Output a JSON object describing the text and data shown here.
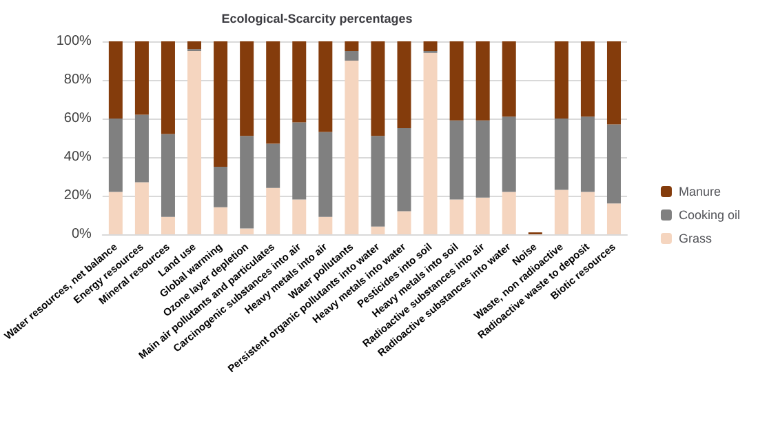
{
  "chart_data": {
    "type": "bar",
    "title": "Ecological-Scarcity percentages",
    "stacked": true,
    "categories": [
      "Water resources, net balance",
      "Energy resources",
      "Mineral resources",
      "Land use",
      "Global warming",
      "Ozone layer depletion",
      "Main air pollutants and particulates",
      "Carcinogenic substances into air",
      "Heavy metals into air",
      "Water pollutants",
      "Persistent organic pollutants into water",
      "Heavy metals into water",
      "Pesticides into soil",
      "Heavy metals into soil",
      "Radioactive substances into air",
      "Radioactive substances into water",
      "Noise",
      "Waste, non radioactive",
      "Radioactive waste to deposit",
      "Biotic resources"
    ],
    "series": [
      {
        "name": "Grass",
        "color": "#f5d5bf",
        "values": [
          22,
          27,
          9,
          95,
          14,
          3,
          24,
          18,
          9,
          90,
          4,
          12,
          94,
          18,
          19,
          22,
          0,
          23,
          22,
          16
        ]
      },
      {
        "name": "Cooking oil",
        "color": "#808080",
        "values": [
          38,
          35,
          43,
          1,
          21,
          48,
          23,
          40,
          44,
          5,
          47,
          43,
          1,
          41,
          40,
          39,
          0,
          37,
          39,
          41
        ]
      },
      {
        "name": "Manure",
        "color": "#843c0c",
        "values": [
          40,
          38,
          48,
          4,
          65,
          49,
          53,
          42,
          47,
          5,
          49,
          45,
          5,
          41,
          41,
          39,
          1,
          40,
          39,
          43
        ]
      }
    ],
    "ylim": [
      0,
      100
    ],
    "yticks": [
      {
        "value": 0,
        "label": "0%"
      },
      {
        "value": 20,
        "label": "20%"
      },
      {
        "value": 40,
        "label": "40%"
      },
      {
        "value": 60,
        "label": "60%"
      },
      {
        "value": 80,
        "label": "80%"
      },
      {
        "value": 100,
        "label": "100%"
      }
    ],
    "grid": true,
    "legend": "right"
  }
}
